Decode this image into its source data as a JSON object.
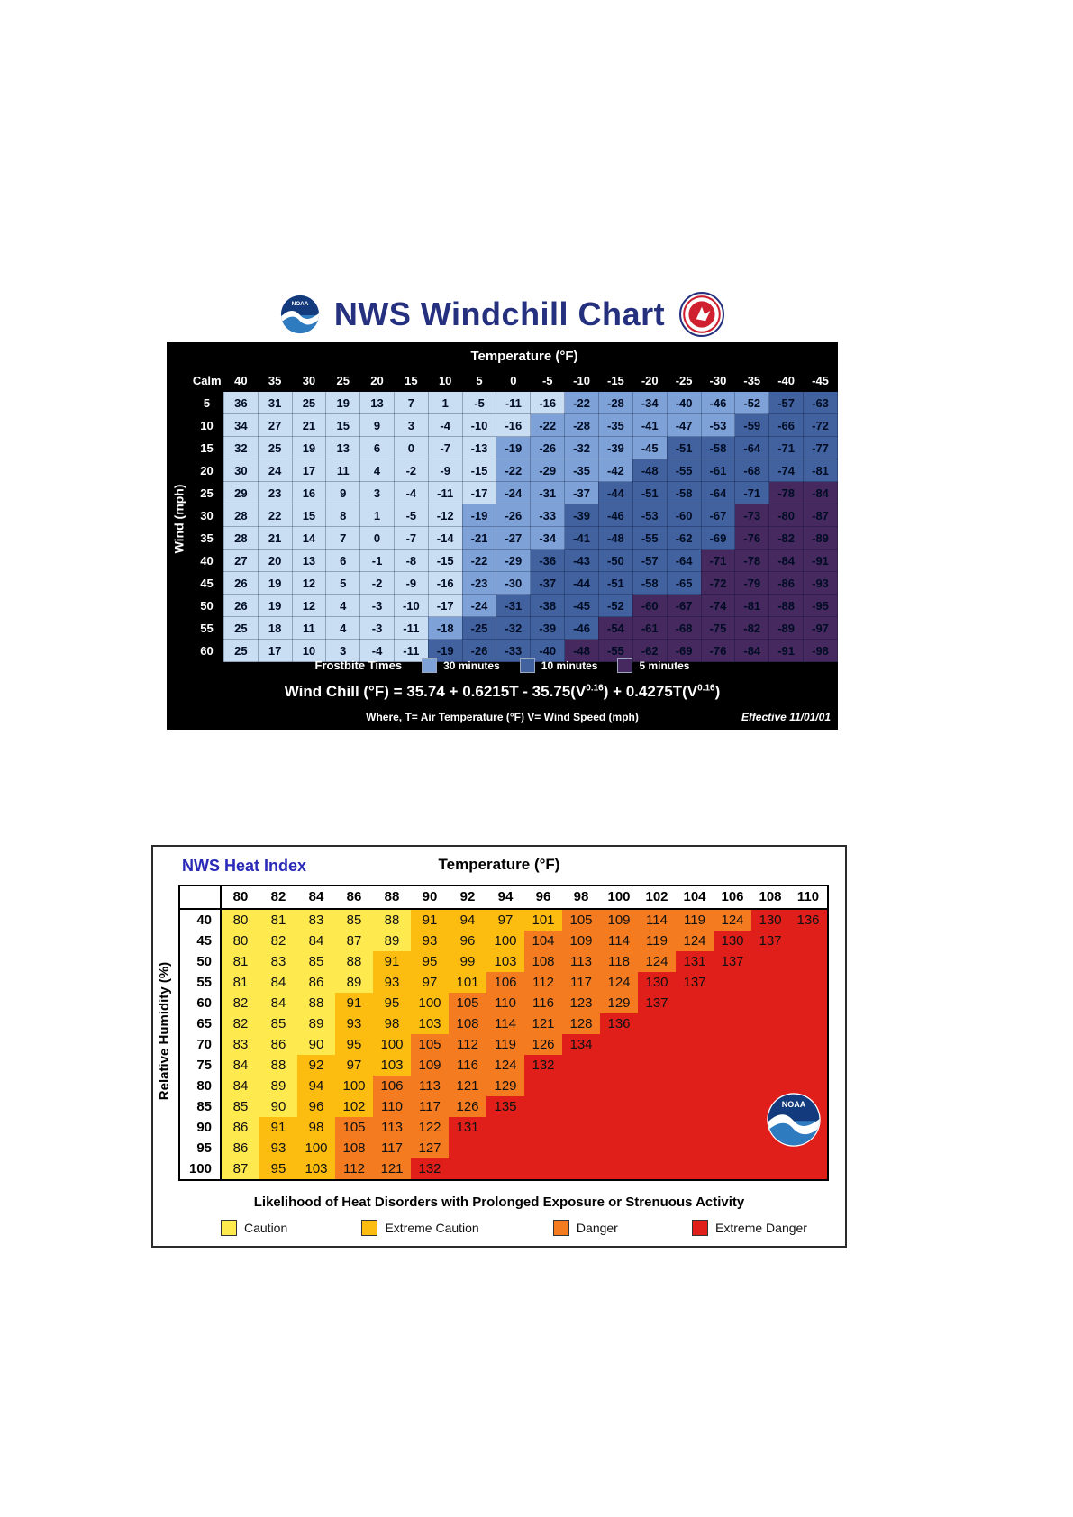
{
  "chart_data": [
    {
      "type": "heatmap",
      "title": "NWS Windchill Chart",
      "xlabel": "Temperature (°F)",
      "ylabel": "Wind (mph)",
      "calm_label": "Calm",
      "x": [
        40,
        35,
        30,
        25,
        20,
        15,
        10,
        5,
        0,
        -5,
        -10,
        -15,
        -20,
        -25,
        -30,
        -35,
        -40,
        -45
      ],
      "y": [
        5,
        10,
        15,
        20,
        25,
        30,
        35,
        40,
        45,
        50,
        55,
        60
      ],
      "values": [
        [
          36,
          31,
          25,
          19,
          13,
          7,
          1,
          -5,
          -11,
          -16,
          -22,
          -28,
          -34,
          -40,
          -46,
          -52,
          -57,
          -63
        ],
        [
          34,
          27,
          21,
          15,
          9,
          3,
          -4,
          -10,
          -16,
          -22,
          -28,
          -35,
          -41,
          -47,
          -53,
          -59,
          -66,
          -72
        ],
        [
          32,
          25,
          19,
          13,
          6,
          0,
          -7,
          -13,
          -19,
          -26,
          -32,
          -39,
          -45,
          -51,
          -58,
          -64,
          -71,
          -77
        ],
        [
          30,
          24,
          17,
          11,
          4,
          -2,
          -9,
          -15,
          -22,
          -29,
          -35,
          -42,
          -48,
          -55,
          -61,
          -68,
          -74,
          -81
        ],
        [
          29,
          23,
          16,
          9,
          3,
          -4,
          -11,
          -17,
          -24,
          -31,
          -37,
          -44,
          -51,
          -58,
          -64,
          -71,
          -78,
          -84
        ],
        [
          28,
          22,
          15,
          8,
          1,
          -5,
          -12,
          -19,
          -26,
          -33,
          -39,
          -46,
          -53,
          -60,
          -67,
          -73,
          -80,
          -87
        ],
        [
          28,
          21,
          14,
          7,
          0,
          -7,
          -14,
          -21,
          -27,
          -34,
          -41,
          -48,
          -55,
          -62,
          -69,
          -76,
          -82,
          -89
        ],
        [
          27,
          20,
          13,
          6,
          -1,
          -8,
          -15,
          -22,
          -29,
          -36,
          -43,
          -50,
          -57,
          -64,
          -71,
          -78,
          -84,
          -91
        ],
        [
          26,
          19,
          12,
          5,
          -2,
          -9,
          -16,
          -23,
          -30,
          -37,
          -44,
          -51,
          -58,
          -65,
          -72,
          -79,
          -86,
          -93
        ],
        [
          26,
          19,
          12,
          4,
          -3,
          -10,
          -17,
          -24,
          -31,
          -38,
          -45,
          -52,
          -60,
          -67,
          -74,
          -81,
          -88,
          -95
        ],
        [
          25,
          18,
          11,
          4,
          -3,
          -11,
          -18,
          -25,
          -32,
          -39,
          -46,
          -54,
          -61,
          -68,
          -75,
          -82,
          -89,
          -97
        ],
        [
          25,
          17,
          10,
          3,
          -4,
          -11,
          -19,
          -26,
          -33,
          -40,
          -48,
          -55,
          -62,
          -69,
          -76,
          -84,
          -91,
          -98
        ]
      ],
      "zones": [
        [
          0,
          0,
          0,
          0,
          0,
          0,
          0,
          0,
          0,
          0,
          1,
          1,
          1,
          1,
          1,
          1,
          2,
          2
        ],
        [
          0,
          0,
          0,
          0,
          0,
          0,
          0,
          0,
          0,
          1,
          1,
          1,
          1,
          1,
          1,
          2,
          2,
          2
        ],
        [
          0,
          0,
          0,
          0,
          0,
          0,
          0,
          0,
          1,
          1,
          1,
          1,
          1,
          2,
          2,
          2,
          2,
          2
        ],
        [
          0,
          0,
          0,
          0,
          0,
          0,
          0,
          0,
          1,
          1,
          1,
          1,
          2,
          2,
          2,
          2,
          2,
          2
        ],
        [
          0,
          0,
          0,
          0,
          0,
          0,
          0,
          0,
          1,
          1,
          1,
          2,
          2,
          2,
          2,
          2,
          3,
          3
        ],
        [
          0,
          0,
          0,
          0,
          0,
          0,
          0,
          1,
          1,
          1,
          2,
          2,
          2,
          2,
          2,
          3,
          3,
          3
        ],
        [
          0,
          0,
          0,
          0,
          0,
          0,
          0,
          1,
          1,
          1,
          2,
          2,
          2,
          2,
          2,
          3,
          3,
          3
        ],
        [
          0,
          0,
          0,
          0,
          0,
          0,
          0,
          1,
          1,
          2,
          2,
          2,
          2,
          2,
          3,
          3,
          3,
          3
        ],
        [
          0,
          0,
          0,
          0,
          0,
          0,
          0,
          1,
          1,
          2,
          2,
          2,
          2,
          2,
          3,
          3,
          3,
          3
        ],
        [
          0,
          0,
          0,
          0,
          0,
          0,
          0,
          1,
          2,
          2,
          2,
          2,
          3,
          3,
          3,
          3,
          3,
          3
        ],
        [
          0,
          0,
          0,
          0,
          0,
          0,
          1,
          2,
          2,
          2,
          2,
          3,
          3,
          3,
          3,
          3,
          3,
          3
        ],
        [
          0,
          0,
          0,
          0,
          0,
          0,
          2,
          2,
          2,
          2,
          3,
          3,
          3,
          3,
          3,
          3,
          3,
          3
        ]
      ],
      "zone_colors": {
        "0": "#c9def3",
        "1": "#7ea2d7",
        "2": "#42629f",
        "3": "#46295f"
      },
      "frostbite_times_label": "Frostbite Times",
      "legend": [
        {
          "label": "30 minutes",
          "color": "#7ea2d7"
        },
        {
          "label": "10 minutes",
          "color": "#42629f"
        },
        {
          "label": "5 minutes",
          "color": "#46295f"
        }
      ],
      "formula": {
        "p1": "Wind Chill (°F) = 35.74 + 0.6215T - 35.75(V",
        "sup1": "0.16",
        "p2": ") + 0.4275T(V",
        "sup2": "0.16",
        "p3": ")"
      },
      "where_line": "Where, T= Air Temperature (°F)   V= Wind Speed (mph)",
      "effective_label": "Effective 11/01/01",
      "logo_noaa_text": "NOAA"
    },
    {
      "type": "heatmap",
      "title": "NWS Heat Index",
      "xlabel": "Temperature (°F)",
      "ylabel": "Relative Humidity (%)",
      "x": [
        80,
        82,
        84,
        86,
        88,
        90,
        92,
        94,
        96,
        98,
        100,
        102,
        104,
        106,
        108,
        110
      ],
      "y": [
        40,
        45,
        50,
        55,
        60,
        65,
        70,
        75,
        80,
        85,
        90,
        95,
        100
      ],
      "values": [
        [
          80,
          81,
          83,
          85,
          88,
          91,
          94,
          97,
          101,
          105,
          109,
          114,
          119,
          124,
          130,
          136
        ],
        [
          80,
          82,
          84,
          87,
          89,
          93,
          96,
          100,
          104,
          109,
          114,
          119,
          124,
          130,
          137
        ],
        [
          81,
          83,
          85,
          88,
          91,
          95,
          99,
          103,
          108,
          113,
          118,
          124,
          131,
          137
        ],
        [
          81,
          84,
          86,
          89,
          93,
          97,
          101,
          106,
          112,
          117,
          124,
          130,
          137
        ],
        [
          82,
          84,
          88,
          91,
          95,
          100,
          105,
          110,
          116,
          123,
          129,
          137
        ],
        [
          82,
          85,
          89,
          93,
          98,
          103,
          108,
          114,
          121,
          128,
          136
        ],
        [
          83,
          86,
          90,
          95,
          100,
          105,
          112,
          119,
          126,
          134
        ],
        [
          84,
          88,
          92,
          97,
          103,
          109,
          116,
          124,
          132
        ],
        [
          84,
          89,
          94,
          100,
          106,
          113,
          121,
          129
        ],
        [
          85,
          90,
          96,
          102,
          110,
          117,
          126,
          135
        ],
        [
          86,
          91,
          98,
          105,
          113,
          122,
          131
        ],
        [
          86,
          93,
          100,
          108,
          117,
          127
        ],
        [
          87,
          95,
          103,
          112,
          121,
          132
        ]
      ],
      "categories": {
        "caution": {
          "label": "Caution",
          "color": "#fee94f",
          "max": 90
        },
        "extreme_caution": {
          "label": "Extreme Caution",
          "color": "#fdbd10",
          "max": 103
        },
        "danger": {
          "label": "Danger",
          "color": "#f47b20",
          "max": 129
        },
        "extreme_danger": {
          "label": "Extreme Danger",
          "color": "#e01e1a",
          "max": 999
        }
      },
      "legend_order": [
        "caution",
        "extreme_caution",
        "danger",
        "extreme_danger"
      ],
      "footer": "Likelihood of Heat Disorders with Prolonged Exposure or Strenuous Activity",
      "logo_noaa_text": "NOAA"
    }
  ]
}
